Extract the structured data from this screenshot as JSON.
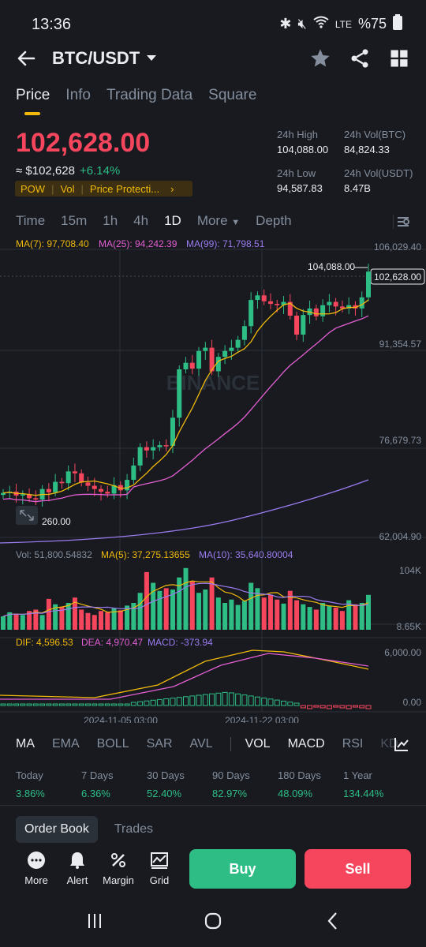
{
  "status_bar": {
    "time": "13:36",
    "battery": "%75"
  },
  "header": {
    "pair": "BTC/USDT"
  },
  "tabs": [
    "Price",
    "Info",
    "Trading Data",
    "Square"
  ],
  "price": {
    "last": "102,628.00",
    "usd": "≈ $102,628",
    "change": "+6.14%",
    "tags": [
      "POW",
      "Vol",
      "Price Protecti..."
    ]
  },
  "stats": {
    "high_label": "24h High",
    "high_value": "104,088.00",
    "vol_btc_label": "24h Vol(BTC)",
    "vol_btc_value": "84,824.33",
    "low_label": "24h Low",
    "low_value": "94,587.83",
    "vol_usdt_label": "24h Vol(USDT)",
    "vol_usdt_value": "8.47B"
  },
  "timeframes": [
    "Time",
    "15m",
    "1h",
    "4h",
    "1D",
    "More",
    "Depth"
  ],
  "chart_labels": {
    "ma7": "MA(7): 97,708.40",
    "ma25": "MA(25): 94,242.39",
    "ma99": "MA(99): 71,798.51",
    "y_top": "106,029.40",
    "y_2": "91,354.57",
    "y_3": "76,679.73",
    "y_bottom": "62,004.90",
    "high_marker": "104,088.00",
    "current_price_tag": "102,628.00",
    "low_marker": "260.00",
    "watermark": "BINANCE",
    "vol": "Vol: 51,800.54832",
    "vol_ma5": "MA(5): 37,275.13655",
    "vol_ma10": "MA(10): 35,640.80004",
    "vol_top": "104K",
    "vol_bottom": "8.65K",
    "dif": "DIF: 4,596.53",
    "dea": "DEA: 4,970.47",
    "macd": "MACD: -373.94",
    "macd_top": "6,000.00",
    "macd_zero": "0.00",
    "date_1": "2024-11-05 03:00",
    "date_2": "2024-11-22 03:00"
  },
  "colors": {
    "up": "#2ebd85",
    "down": "#f6465d",
    "ma7": "#f0b90b",
    "ma25": "#e45fd3",
    "ma99": "#9b7cf0"
  },
  "indicators": [
    "MA",
    "EMA",
    "BOLL",
    "SAR",
    "AVL",
    "VOL",
    "MACD",
    "RSI",
    "KD"
  ],
  "performance": [
    {
      "label": "Today",
      "value": "3.86%"
    },
    {
      "label": "7 Days",
      "value": "6.36%"
    },
    {
      "label": "30 Days",
      "value": "52.40%"
    },
    {
      "label": "90 Days",
      "value": "82.97%"
    },
    {
      "label": "180 Days",
      "value": "48.09%"
    },
    {
      "label": "1 Year",
      "value": "134.44%"
    }
  ],
  "bottom_tabs": [
    "Order Book",
    "Trades"
  ],
  "toolbar": {
    "more": "More",
    "alert": "Alert",
    "margin": "Margin",
    "grid": "Grid",
    "buy": "Buy",
    "sell": "Sell"
  }
}
